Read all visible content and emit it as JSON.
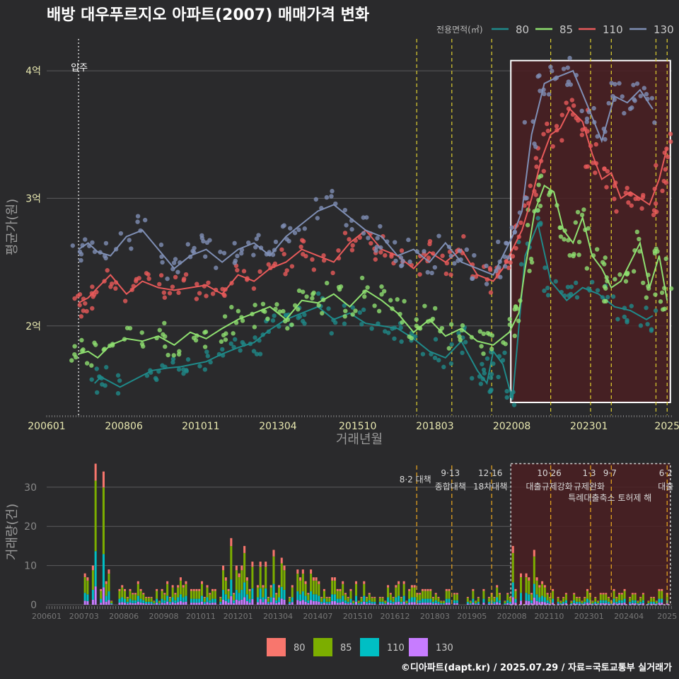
{
  "chart_data": {
    "type": "line",
    "title": "배방 대우푸르지오 아파트(2007) 매매가격 변화",
    "legend_title": "전용면적(㎡)",
    "caption": "©디아파트(dapt.kr) / 2025.07.29 / 자료=국토교통부 실거래가",
    "colors": {
      "80": "#1f8a8a",
      "85": "#8fe070",
      "110": "#e85a5a",
      "130": "#7f8fb5"
    },
    "volume_colors": {
      "80": "#f8766d",
      "85": "#7cae00",
      "110": "#00bfc4",
      "130": "#c77cff"
    },
    "price_chart": {
      "xlabel": "거래년월",
      "ylabel": "평균가(원)",
      "x_range": [
        2006.0,
        2025.6
      ],
      "y_range": [
        1.3,
        4.25
      ],
      "y_ticks": [
        {
          "v": 2,
          "label": "2억"
        },
        {
          "v": 3,
          "label": "3억"
        },
        {
          "v": 4,
          "label": "4억"
        }
      ],
      "x_ticks": [
        {
          "v": 2006.0,
          "label": "200601"
        },
        {
          "v": 2008.42,
          "label": "200806"
        },
        {
          "v": 2010.83,
          "label": "201011"
        },
        {
          "v": 2013.25,
          "label": "201304"
        },
        {
          "v": 2015.75,
          "label": "201510"
        },
        {
          "v": 2018.17,
          "label": "201803"
        },
        {
          "v": 2020.58,
          "label": "202008"
        },
        {
          "v": 2023.0,
          "label": "202301"
        },
        {
          "v": 2025.45,
          "label": "2025"
        }
      ],
      "move_in": {
        "x": 2007.0,
        "label": "입주"
      },
      "policy_lines": [
        2017.6,
        2018.7,
        2019.95,
        2021.8,
        2023.05,
        2023.7,
        2025.1,
        2025.45
      ],
      "highlight": {
        "x0": 2020.55,
        "x1": 2025.55,
        "y0": 1.4,
        "y1": 4.08
      },
      "series": [
        {
          "name": "80",
          "x": [
            2007.5,
            2007.7,
            2008.3,
            2009.3,
            2009.8,
            2010.2,
            2010.6,
            2011.0,
            2011.5,
            2012.0,
            2012.5,
            2013.0,
            2013.5,
            2014.0,
            2014.5,
            2015.0,
            2015.5,
            2016.0,
            2016.5,
            2017.0,
            2017.5,
            2018.0,
            2018.5,
            2019.0,
            2019.5,
            2019.8,
            2020.0,
            2020.3,
            2020.6,
            2021.0,
            2021.4,
            2021.8,
            2022.3,
            2022.8,
            2023.3,
            2023.8,
            2024.3,
            2024.8,
            2025.0
          ],
          "y": [
            1.55,
            1.6,
            1.52,
            1.65,
            1.67,
            1.68,
            1.7,
            1.72,
            1.78,
            1.83,
            1.87,
            1.97,
            2.05,
            2.1,
            2.15,
            2.05,
            2.1,
            2.02,
            2.0,
            1.98,
            1.9,
            1.8,
            1.75,
            1.88,
            1.65,
            1.55,
            1.8,
            1.7,
            1.42,
            2.55,
            2.8,
            2.35,
            2.2,
            2.3,
            2.25,
            2.15,
            2.12,
            2.05,
            2.08
          ]
        },
        {
          "name": "85",
          "x": [
            2007.0,
            2007.3,
            2007.6,
            2008.0,
            2008.5,
            2009.0,
            2009.5,
            2010.0,
            2010.5,
            2011.0,
            2011.5,
            2012.0,
            2012.5,
            2013.0,
            2013.5,
            2014.0,
            2014.5,
            2015.0,
            2015.5,
            2016.0,
            2016.5,
            2017.0,
            2017.5,
            2018.0,
            2018.5,
            2019.0,
            2019.5,
            2020.0,
            2020.5,
            2020.8,
            2021.0,
            2021.3,
            2021.6,
            2021.9,
            2022.2,
            2022.5,
            2022.8,
            2023.1,
            2023.4,
            2023.7,
            2024.0,
            2024.3,
            2024.6,
            2024.9,
            2025.2,
            2025.45
          ],
          "y": [
            1.78,
            1.8,
            1.75,
            1.85,
            1.9,
            1.88,
            1.92,
            1.85,
            1.95,
            1.9,
            1.98,
            2.05,
            2.1,
            2.15,
            2.05,
            2.2,
            2.18,
            2.25,
            2.15,
            2.28,
            2.2,
            2.1,
            1.95,
            2.05,
            1.92,
            1.98,
            1.88,
            1.85,
            1.95,
            2.1,
            2.45,
            2.9,
            3.1,
            3.05,
            2.75,
            2.65,
            2.85,
            2.55,
            2.45,
            2.3,
            2.35,
            2.5,
            2.65,
            2.3,
            2.55,
            2.2
          ]
        },
        {
          "name": "110",
          "x": [
            2007.0,
            2007.3,
            2007.6,
            2008.0,
            2008.5,
            2009.0,
            2009.5,
            2010.0,
            2010.5,
            2011.0,
            2011.5,
            2012.0,
            2012.5,
            2013.0,
            2013.5,
            2014.0,
            2014.5,
            2015.0,
            2015.5,
            2016.0,
            2016.5,
            2017.0,
            2017.5,
            2018.0,
            2018.5,
            2019.0,
            2019.5,
            2020.0,
            2020.3,
            2020.6,
            2020.9,
            2021.2,
            2021.5,
            2021.8,
            2022.1,
            2022.4,
            2022.8,
            2023.1,
            2023.4,
            2023.7,
            2024.0,
            2024.3,
            2024.6,
            2024.9,
            2025.2,
            2025.45
          ],
          "y": [
            2.18,
            2.22,
            2.3,
            2.4,
            2.25,
            2.35,
            2.3,
            2.28,
            2.3,
            2.32,
            2.25,
            2.4,
            2.35,
            2.45,
            2.5,
            2.6,
            2.55,
            2.5,
            2.65,
            2.75,
            2.6,
            2.55,
            2.45,
            2.58,
            2.5,
            2.6,
            2.4,
            2.35,
            2.45,
            2.6,
            2.75,
            3.0,
            3.3,
            3.5,
            3.55,
            3.7,
            3.6,
            3.35,
            3.15,
            3.2,
            3.0,
            3.05,
            3.0,
            2.95,
            3.15,
            3.4
          ]
        },
        {
          "name": "130",
          "x": [
            2007.0,
            2007.3,
            2007.6,
            2008.0,
            2008.5,
            2009.0,
            2009.5,
            2010.0,
            2010.5,
            2011.0,
            2011.5,
            2012.0,
            2012.5,
            2013.0,
            2013.5,
            2014.0,
            2014.5,
            2015.0,
            2015.5,
            2016.0,
            2016.5,
            2017.0,
            2017.5,
            2018.0,
            2018.5,
            2019.0,
            2019.5,
            2020.0,
            2020.3,
            2020.6,
            2020.9,
            2021.2,
            2021.6,
            2022.0,
            2022.5,
            2023.0,
            2023.4,
            2023.8,
            2024.2,
            2024.6,
            2025.0
          ],
          "y": [
            2.6,
            2.65,
            2.58,
            2.55,
            2.7,
            2.75,
            2.6,
            2.45,
            2.55,
            2.6,
            2.5,
            2.6,
            2.65,
            2.55,
            2.7,
            2.8,
            2.9,
            2.95,
            2.85,
            2.75,
            2.7,
            2.55,
            2.6,
            2.5,
            2.65,
            2.5,
            2.45,
            2.4,
            2.55,
            2.7,
            2.9,
            3.5,
            3.9,
            3.95,
            4.0,
            3.7,
            3.45,
            3.8,
            3.75,
            3.85,
            3.7
          ]
        }
      ]
    },
    "volume_chart": {
      "ylabel": "거래량(건)",
      "y_range": [
        0,
        37
      ],
      "y_ticks": [
        0,
        10,
        20,
        30
      ],
      "x_range": [
        2006.0,
        2025.6
      ],
      "x_ticks": [
        {
          "v": 2006.0,
          "label": "200601"
        },
        {
          "v": 2007.17,
          "label": "200703"
        },
        {
          "v": 2008.42,
          "label": "200806"
        },
        {
          "v": 2009.67,
          "label": "200908"
        },
        {
          "v": 2010.83,
          "label": "201011"
        },
        {
          "v": 2012.0,
          "label": "201201"
        },
        {
          "v": 2013.25,
          "label": "201304"
        },
        {
          "v": 2014.5,
          "label": "201407"
        },
        {
          "v": 2015.75,
          "label": "201510"
        },
        {
          "v": 2016.92,
          "label": "201612"
        },
        {
          "v": 2018.17,
          "label": "201803"
        },
        {
          "v": 2019.33,
          "label": "201905"
        },
        {
          "v": 2020.58,
          "label": "202008"
        },
        {
          "v": 2021.75,
          "label": "202110"
        },
        {
          "v": 2023.0,
          "label": "202301"
        },
        {
          "v": 2024.25,
          "label": "202404"
        },
        {
          "v": 2025.45,
          "label": "2025"
        }
      ],
      "policies": [
        {
          "x": 2017.6,
          "top": "8·2 대책",
          "bottom": ""
        },
        {
          "x": 2018.7,
          "top": "9·13",
          "bottom": "종합대책"
        },
        {
          "x": 2019.95,
          "top": "12·16",
          "bottom": "18차대책"
        },
        {
          "x": 2021.8,
          "top": "10·26",
          "bottom": "대출규제강화"
        },
        {
          "x": 2023.05,
          "top": "1·3",
          "bottom": "규제완화"
        },
        {
          "x": 2023.7,
          "top": "9·7",
          "bottom": "특례대출축소 토허제 해"
        },
        {
          "x": 2025.45,
          "top": "6·2",
          "bottom": "대출"
        }
      ],
      "highlight": {
        "x0": 2020.55,
        "x1": 2025.55,
        "y0": 0,
        "y1": 36
      },
      "peaks": [
        {
          "x": 2007.5,
          "v": 36
        },
        {
          "x": 2007.8,
          "v": 34
        },
        {
          "x": 2011.8,
          "v": 17
        },
        {
          "x": 2012.2,
          "v": 15
        },
        {
          "x": 2013.1,
          "v": 14
        },
        {
          "x": 2020.6,
          "v": 15
        },
        {
          "x": 2021.3,
          "v": 14
        }
      ]
    },
    "legend_bottom": [
      "80",
      "85",
      "110",
      "130"
    ]
  }
}
